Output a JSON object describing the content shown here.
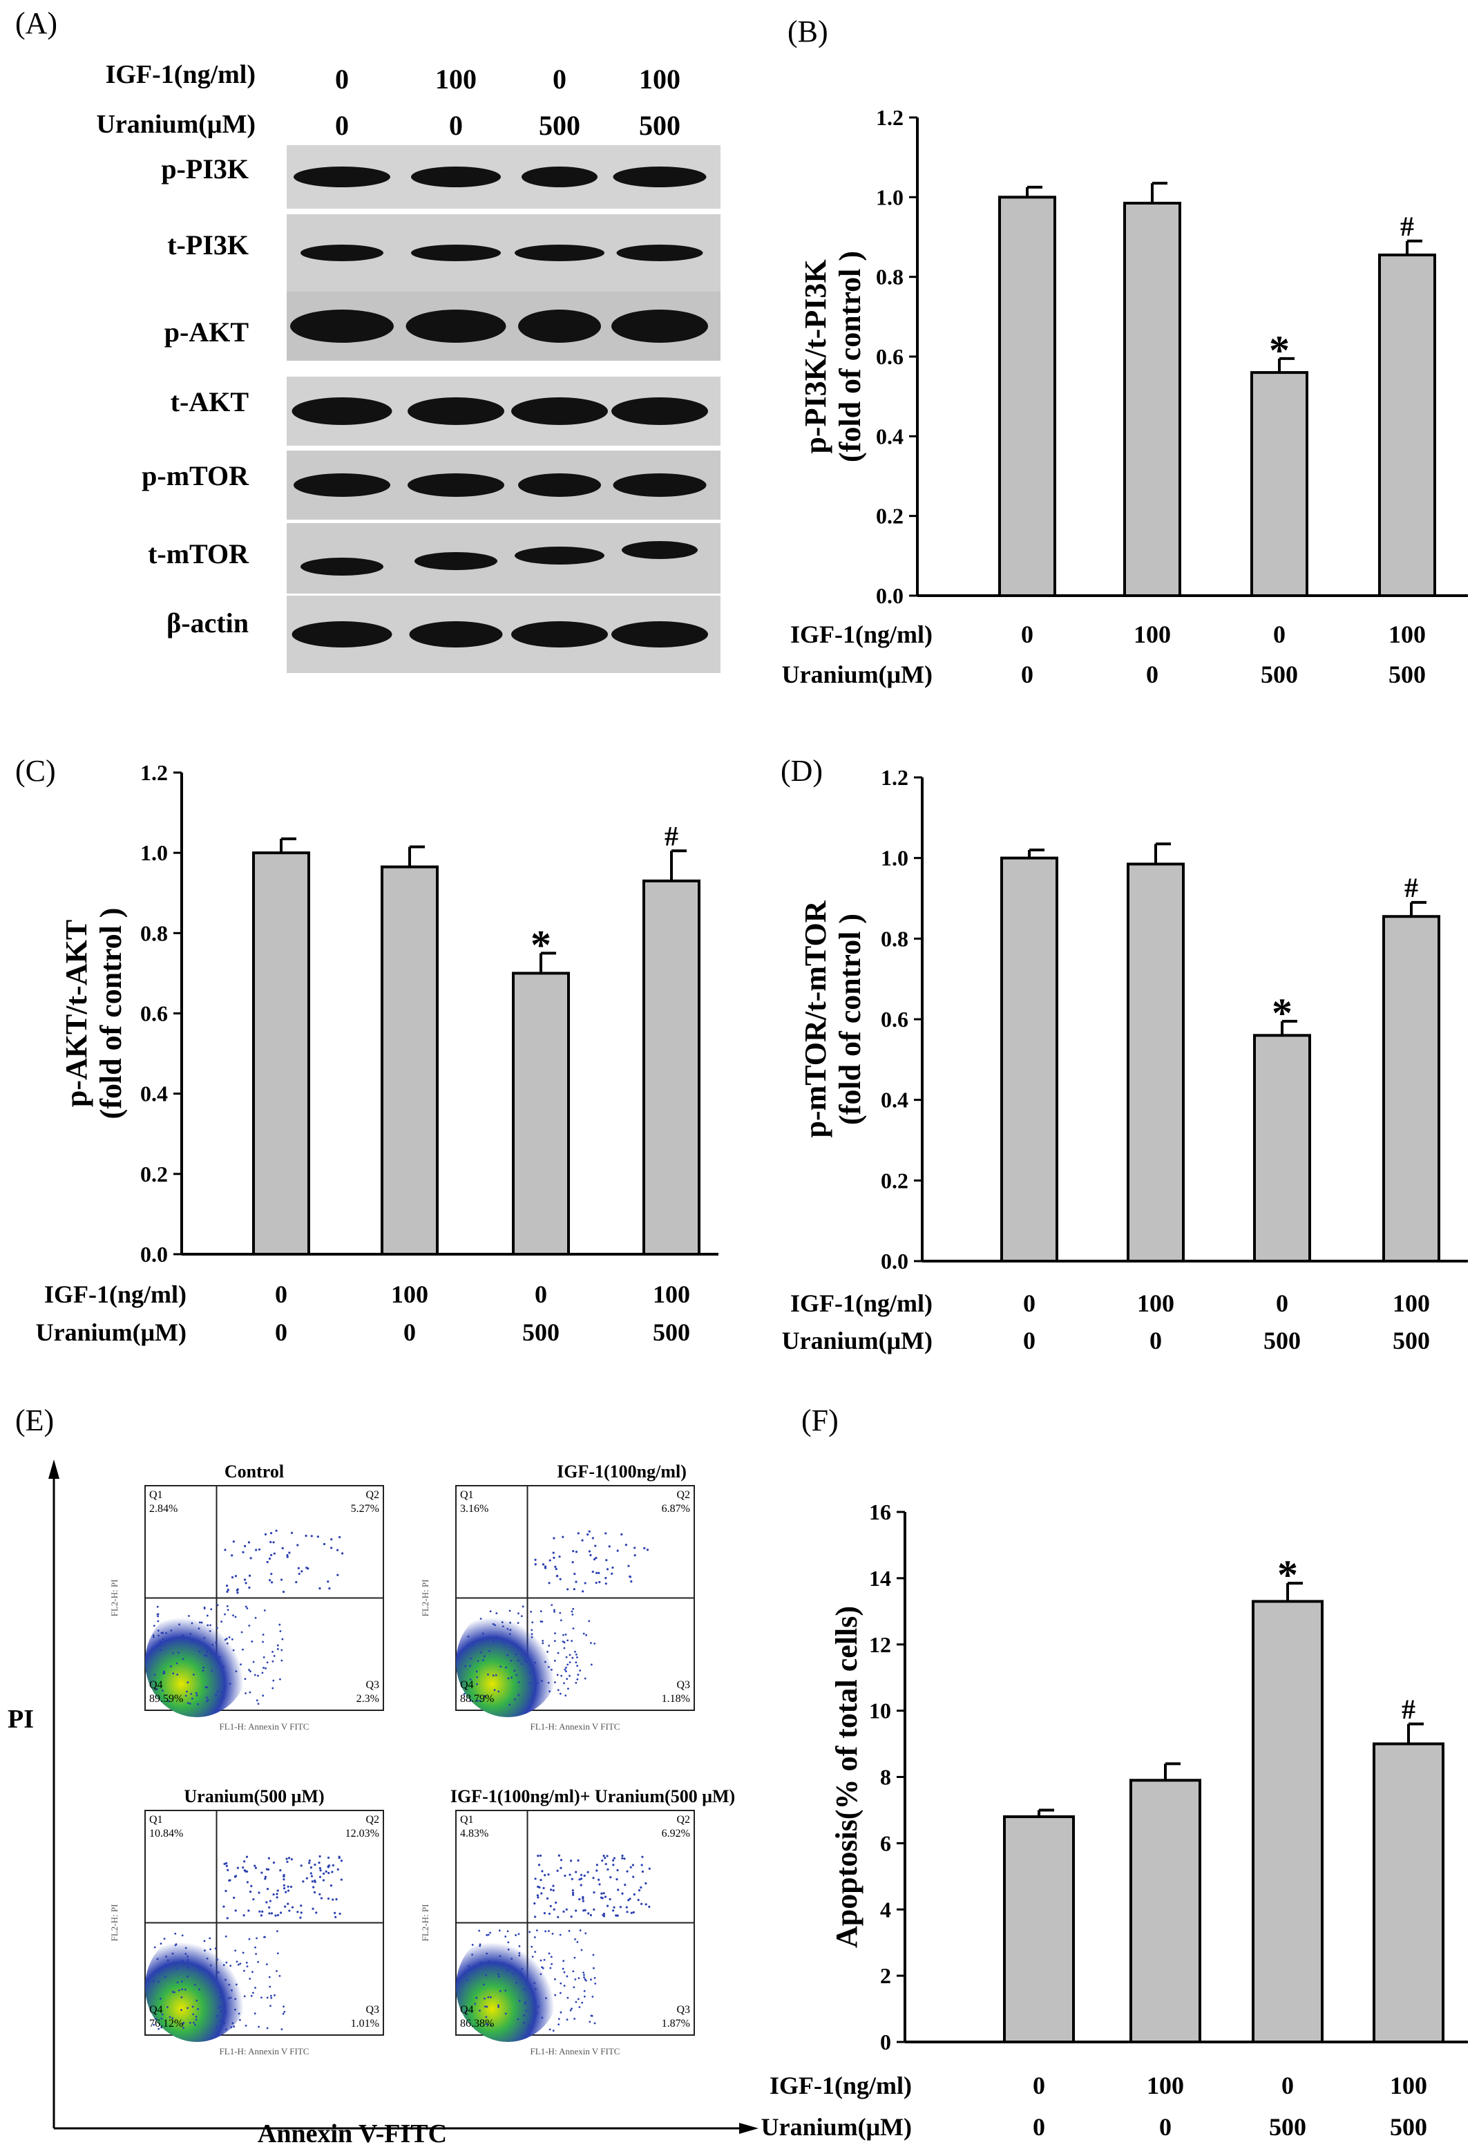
{
  "panels": {
    "A": "(A)",
    "B": "(B)",
    "C": "(C)",
    "D": "(D)",
    "E": "(E)",
    "F": "(F)"
  },
  "treatments": {
    "igf_label": "IGF-1(ng/ml)",
    "uranium_label": "Uranium(μM)",
    "igf_values": [
      "0",
      "100",
      "0",
      "100"
    ],
    "uranium_values": [
      "0",
      "0",
      "500",
      "500"
    ]
  },
  "western_blot": {
    "header_igf_label": "IGF-1(ng/ml)",
    "header_uranium_label": "Uranium(μM)",
    "bands": [
      "p-PI3K",
      "t-PI3K",
      "p-AKT",
      "t-AKT",
      "p-mTOR",
      "t-mTOR",
      "β-actin"
    ]
  },
  "flow": {
    "y_axis": "PI",
    "x_axis": "Annexin V-FITC",
    "plots": [
      {
        "title": "Control",
        "q1": "2.84%",
        "q2": "5.27%",
        "q3": "2.3%",
        "q1_label": "Q1",
        "q2_label": "Q2",
        "q3_label": "Q3",
        "q4_label": "Q4",
        "q4": "89.59%"
      },
      {
        "title": "IGF-1(100ng/ml)",
        "q1": "3.16%",
        "q2": "6.87%",
        "q3": "1.18%",
        "q1_label": "Q1",
        "q2_label": "Q2",
        "q3_label": "Q3",
        "q4_label": "Q4",
        "q4": "88.79%"
      },
      {
        "title": "Uranium(500 μM)",
        "q1": "10.84%",
        "q2": "12.03%",
        "q3": "1.01%",
        "q1_label": "Q1",
        "q2_label": "Q2",
        "q3_label": "Q3",
        "q4_label": "Q4",
        "q4": "76.12%"
      },
      {
        "title": "IGF-1(100ng/ml)+ Uranium(500 μM)",
        "q1": "4.83%",
        "q2": "6.92%",
        "q3": "1.87%",
        "q1_label": "Q1",
        "q2_label": "Q2",
        "q3_label": "Q3",
        "q4_label": "Q4",
        "q4": "86.38%"
      }
    ],
    "small_xlabel": "FL1-H: Annexin V FITC",
    "small_ylabel": "FL2-H: PI"
  },
  "chart_data": [
    {
      "id": "B",
      "type": "bar",
      "ylabel_line1": "p-PI3K/t-PI3K",
      "ylabel_line2": "(fold of control )",
      "ylim": [
        0,
        1.2
      ],
      "yticks": [
        "0.0",
        "0.2",
        "0.4",
        "0.6",
        "0.8",
        "1.0",
        "1.2"
      ],
      "categories": [
        "0/0",
        "100/0",
        "0/500",
        "100/500"
      ],
      "values": [
        1.0,
        0.985,
        0.56,
        0.855
      ],
      "errors": [
        0.025,
        0.05,
        0.035,
        0.035
      ],
      "annotations": [
        "",
        "",
        "*",
        "#"
      ],
      "bar_color": "#c0c0c0"
    },
    {
      "id": "C",
      "type": "bar",
      "ylabel_line1": "p-AKT/t-AKT",
      "ylabel_line2": "(fold of control )",
      "ylim": [
        0,
        1.2
      ],
      "yticks": [
        "0.0",
        "0.2",
        "0.4",
        "0.6",
        "0.8",
        "1.0",
        "1.2"
      ],
      "categories": [
        "0/0",
        "100/0",
        "0/500",
        "100/500"
      ],
      "values": [
        1.0,
        0.965,
        0.7,
        0.93
      ],
      "errors": [
        0.035,
        0.05,
        0.05,
        0.075
      ],
      "annotations": [
        "",
        "",
        "*",
        "#"
      ],
      "bar_color": "#c0c0c0"
    },
    {
      "id": "D",
      "type": "bar",
      "ylabel_line1": "p-mTOR/t-mTOR",
      "ylabel_line2": "(fold of control )",
      "ylim": [
        0,
        1.2
      ],
      "yticks": [
        "0.0",
        "0.2",
        "0.4",
        "0.6",
        "0.8",
        "1.0",
        "1.2"
      ],
      "categories": [
        "0/0",
        "100/0",
        "0/500",
        "100/500"
      ],
      "values": [
        1.0,
        0.985,
        0.56,
        0.855
      ],
      "errors": [
        0.02,
        0.05,
        0.035,
        0.035
      ],
      "annotations": [
        "",
        "",
        "*",
        "#"
      ],
      "bar_color": "#c0c0c0"
    },
    {
      "id": "F",
      "type": "bar",
      "ylabel_line1": "Apoptosis(% of total cells)",
      "ylabel_line2": "",
      "ylim": [
        0,
        16
      ],
      "yticks": [
        "0",
        "2",
        "4",
        "6",
        "8",
        "10",
        "12",
        "14",
        "16"
      ],
      "categories": [
        "0/0",
        "100/0",
        "0/500",
        "100/500"
      ],
      "values": [
        6.8,
        7.9,
        13.3,
        9.0
      ],
      "errors": [
        0.2,
        0.5,
        0.55,
        0.6
      ],
      "annotations": [
        "",
        "",
        "*",
        "#"
      ],
      "bar_color": "#c0c0c0"
    }
  ]
}
